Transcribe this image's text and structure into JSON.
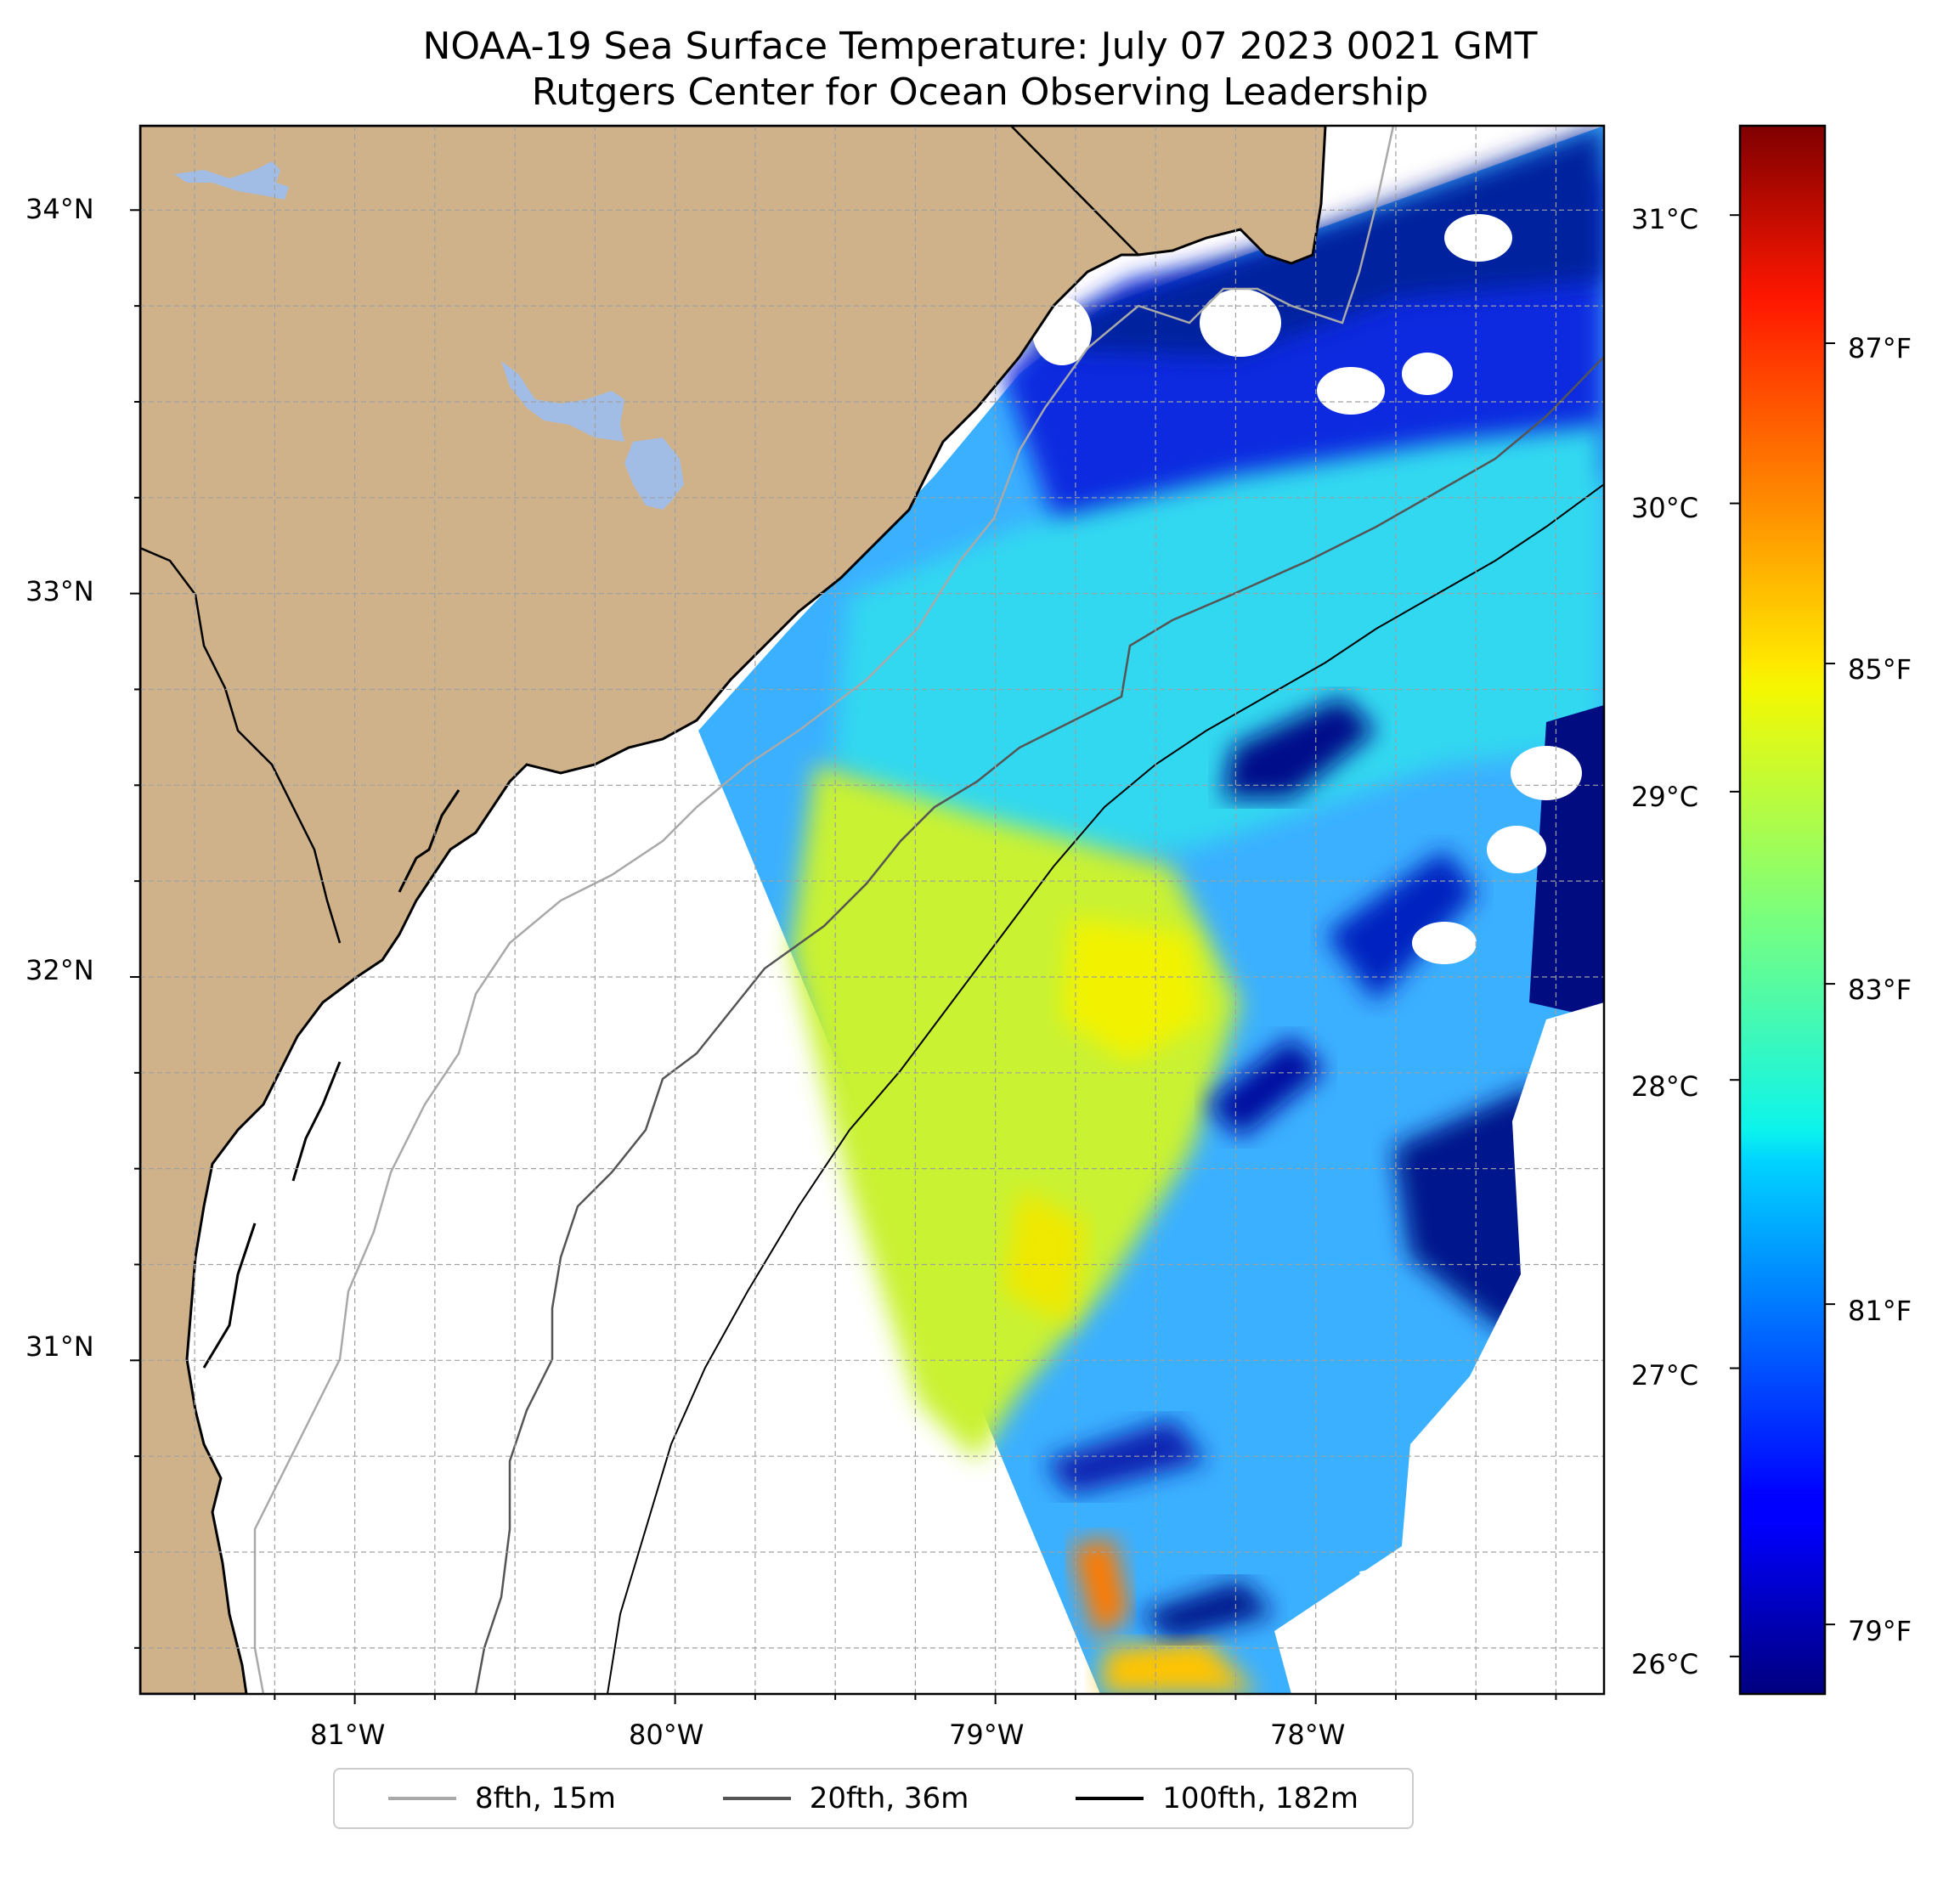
{
  "title": {
    "line1": "NOAA-19 Sea Surface Temperature: July 07 2023 0021 GMT",
    "line2": "Rutgers Center for Ocean Observing Leadership"
  },
  "map": {
    "projection": "Plate Carree",
    "lon_range": [
      -81.67,
      -77.1
    ],
    "lat_range": [
      30.13,
      34.22
    ],
    "gridlines": "dashed grey, every 0.25 degrees",
    "land_color": "#cfb28a",
    "lake_color": "#a2bde5",
    "coastline_color": "#000000",
    "no_data_color": "#ffffff",
    "lon_ticks": [
      "81°W",
      "80°W",
      "79°W",
      "78°W"
    ],
    "lat_ticks": [
      "31°N",
      "32°N",
      "33°N",
      "34°N"
    ]
  },
  "colorbar": {
    "colormap": "jet",
    "celsius_ticks": [
      "26°C",
      "27°C",
      "28°C",
      "29°C",
      "30°C",
      "31°C"
    ],
    "fahrenheit_ticks": [
      "79°F",
      "81°F",
      "83°F",
      "85°F",
      "87°F"
    ],
    "range_celsius": [
      25.87,
      31.31
    ]
  },
  "legend": {
    "entries": [
      {
        "label": "8fth, 15m",
        "color": "#a9a9a9"
      },
      {
        "label": "20fth, 36m",
        "color": "#555555"
      },
      {
        "label": "100fth, 182m",
        "color": "#000000"
      }
    ]
  }
}
